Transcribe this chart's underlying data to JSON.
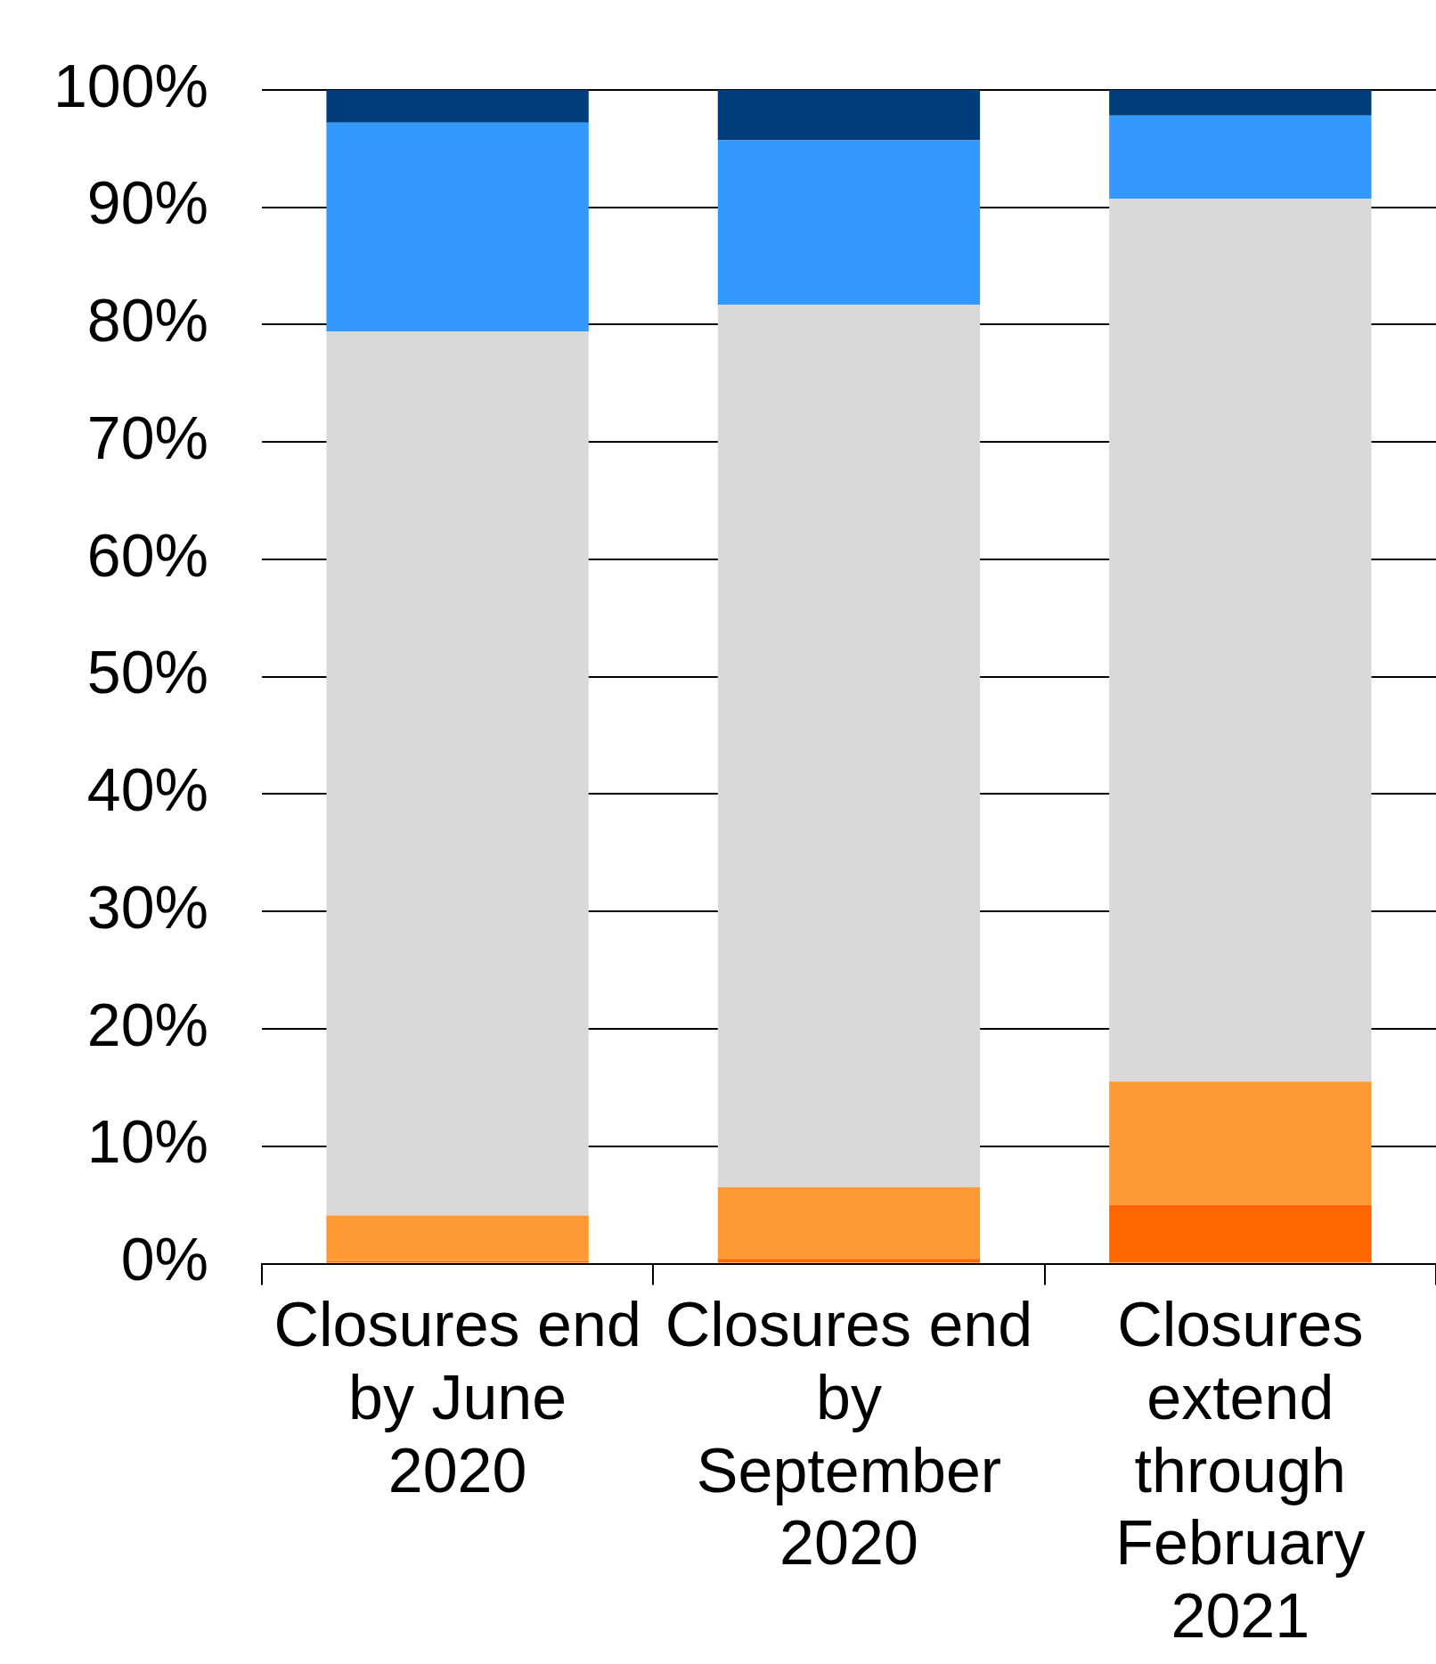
{
  "chart_data": {
    "type": "bar",
    "stacked": true,
    "categories": [
      "Closures end by June 2020",
      "Closures end by September 2020",
      "Closures extend through February 2021"
    ],
    "series": [
      {
        "color": "#ff6600",
        "values": [
          0.2,
          0.4,
          5.0
        ]
      },
      {
        "color": "#ff9933",
        "values": [
          3.9,
          6.1,
          10.5
        ]
      },
      {
        "color": "#d9d9d9",
        "values": [
          75.3,
          75.2,
          75.2
        ]
      },
      {
        "color": "#3399ff",
        "values": [
          17.8,
          14.0,
          7.1
        ]
      },
      {
        "color": "#003d7a",
        "values": [
          2.8,
          4.3,
          2.2
        ]
      }
    ],
    "ylim": [
      0,
      100
    ],
    "yticks": [
      {
        "value": 0,
        "label": "0%"
      },
      {
        "value": 10,
        "label": "10%"
      },
      {
        "value": 20,
        "label": "20%"
      },
      {
        "value": 30,
        "label": "30%"
      },
      {
        "value": 40,
        "label": "40%"
      },
      {
        "value": 50,
        "label": "50%"
      },
      {
        "value": 60,
        "label": "60%"
      },
      {
        "value": 70,
        "label": "70%"
      },
      {
        "value": 80,
        "label": "80%"
      },
      {
        "value": 90,
        "label": "90%"
      },
      {
        "value": 100,
        "label": "100%"
      }
    ],
    "grid": "y",
    "legend": false
  }
}
